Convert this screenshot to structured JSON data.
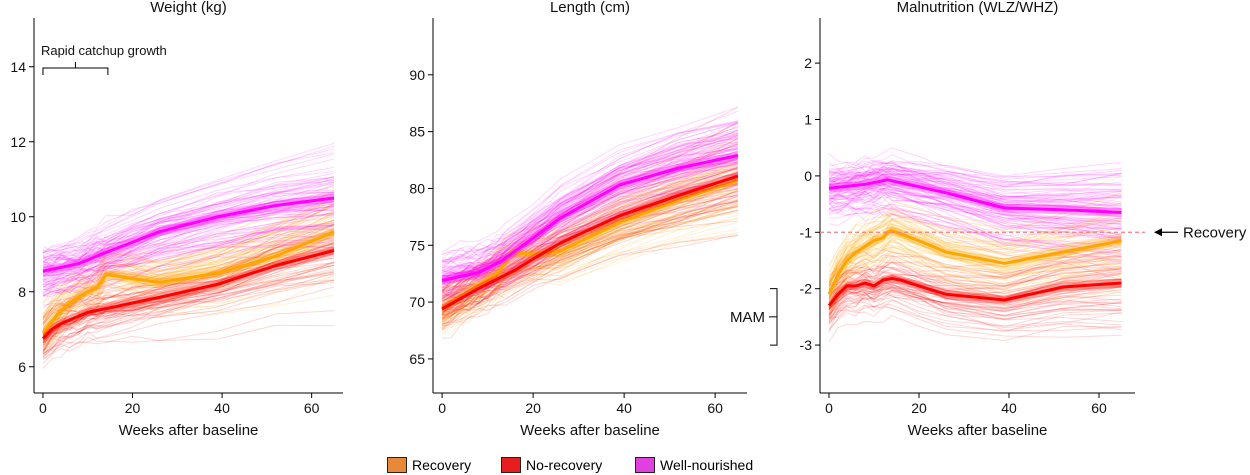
{
  "chart_data": [
    {
      "type": "line",
      "title": "Weight (kg)",
      "xlabel": "Weeks after baseline",
      "ylabel": "",
      "xlim": [
        -2,
        67
      ],
      "ylim": [
        5.3,
        15.3
      ],
      "xticks": [
        0,
        20,
        40,
        60
      ],
      "yticks": [
        6,
        8,
        10,
        12,
        14
      ],
      "series": [
        {
          "name": "Recovery",
          "color": "#FFA500",
          "x": [
            0,
            2,
            4,
            6,
            8,
            10,
            12,
            13,
            14,
            15,
            20,
            26,
            39,
            52,
            65
          ],
          "y": [
            6.9,
            7.2,
            7.5,
            7.7,
            7.85,
            8.0,
            8.1,
            8.25,
            8.45,
            8.45,
            8.35,
            8.25,
            8.5,
            8.95,
            9.6
          ]
        },
        {
          "name": "No-recovery",
          "color": "#FF0000",
          "x": [
            0,
            2,
            4,
            6,
            8,
            10,
            12,
            14,
            16,
            20,
            26,
            39,
            52,
            65
          ],
          "y": [
            6.75,
            7.0,
            7.15,
            7.25,
            7.35,
            7.45,
            7.5,
            7.55,
            7.6,
            7.7,
            7.85,
            8.2,
            8.7,
            9.1
          ]
        },
        {
          "name": "Well-nourished",
          "color": "#FF00FF",
          "x": [
            0,
            8,
            13,
            26,
            39,
            52,
            65
          ],
          "y": [
            8.55,
            8.75,
            9.0,
            9.6,
            10.0,
            10.3,
            10.5
          ]
        }
      ],
      "annotations": [
        {
          "text": "Rapid catchup growth",
          "x_range": [
            0,
            14.5
          ]
        }
      ]
    },
    {
      "type": "line",
      "title": "Length (cm)",
      "xlabel": "Weeks after baseline",
      "ylabel": "",
      "xlim": [
        -2,
        67
      ],
      "ylim": [
        62,
        95
      ],
      "xticks": [
        0,
        20,
        40,
        60
      ],
      "yticks": [
        65,
        70,
        75,
        80,
        85,
        90
      ],
      "series": [
        {
          "name": "Recovery",
          "color": "#FFA500",
          "x": [
            0,
            4,
            8,
            12,
            14,
            15,
            20,
            26,
            39,
            52,
            65
          ],
          "y": [
            69.5,
            70.5,
            71.5,
            72.5,
            73.5,
            74.4,
            74.2,
            74.5,
            77.0,
            79.0,
            80.7
          ]
        },
        {
          "name": "No-recovery",
          "color": "#FF0000",
          "x": [
            0,
            4,
            8,
            12,
            16,
            20,
            26,
            39,
            52,
            65
          ],
          "y": [
            69.4,
            70.3,
            71.2,
            72.0,
            72.8,
            73.8,
            75.2,
            77.6,
            79.4,
            81.1
          ]
        },
        {
          "name": "Well-nourished",
          "color": "#FF00FF",
          "x": [
            0,
            8,
            13,
            26,
            39,
            52,
            65
          ],
          "y": [
            71.9,
            72.6,
            73.6,
            77.4,
            80.3,
            81.8,
            82.9
          ]
        }
      ]
    },
    {
      "type": "line",
      "title": "Malnutrition (WLZ/WHZ)",
      "xlabel": "Weeks after baseline",
      "ylabel": "",
      "xlim": [
        -2,
        68
      ],
      "ylim": [
        -3.85,
        2.8
      ],
      "xticks": [
        0,
        20,
        40,
        60
      ],
      "yticks": [
        -3,
        -2,
        -1,
        0,
        1,
        2
      ],
      "series": [
        {
          "name": "Recovery",
          "color": "#FFA500",
          "x": [
            0,
            2,
            4,
            6,
            8,
            10,
            12,
            13,
            14,
            15,
            20,
            26,
            39,
            52,
            65
          ],
          "y": [
            -2.1,
            -1.75,
            -1.5,
            -1.35,
            -1.25,
            -1.15,
            -1.1,
            -1.0,
            -0.97,
            -1.0,
            -1.15,
            -1.35,
            -1.55,
            -1.35,
            -1.15
          ]
        },
        {
          "name": "No-recovery",
          "color": "#FF0000",
          "x": [
            0,
            2,
            4,
            6,
            8,
            10,
            12,
            14,
            16,
            20,
            26,
            39,
            52,
            65
          ],
          "y": [
            -2.3,
            -2.1,
            -1.95,
            -1.95,
            -1.9,
            -1.95,
            -1.85,
            -1.82,
            -1.85,
            -1.95,
            -2.1,
            -2.2,
            -1.97,
            -1.9
          ]
        },
        {
          "name": "Well-nourished",
          "color": "#FF00FF",
          "x": [
            0,
            8,
            13,
            26,
            39,
            52,
            65
          ],
          "y": [
            -0.22,
            -0.15,
            -0.07,
            -0.3,
            -0.57,
            -0.6,
            -0.65
          ]
        }
      ],
      "reference_line": {
        "y": -1,
        "color": "#F08080",
        "style": "dashed",
        "label": "Recovery"
      },
      "annotations": [
        {
          "text": "MAM",
          "y_range": [
            -3,
            -2
          ]
        }
      ]
    }
  ],
  "legend": {
    "placement": "bottom-center",
    "items": [
      {
        "label": "Recovery",
        "color": "#E8893A"
      },
      {
        "label": "No-recovery",
        "color": "#E61E1E"
      },
      {
        "label": "Well-nourished",
        "color": "#E040E0"
      }
    ]
  }
}
